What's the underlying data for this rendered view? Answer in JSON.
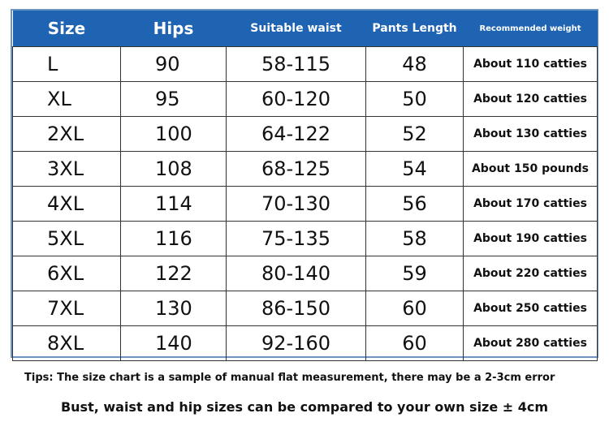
{
  "header": {
    "columns": [
      "Size",
      "Hips",
      "Suitable waist",
      "Pants Length",
      "Recommended weight"
    ]
  },
  "table": {
    "rows": [
      [
        "L",
        "90",
        "58-115",
        "48",
        "About 110 catties"
      ],
      [
        "XL",
        "95",
        "60-120",
        "50",
        "About 120 catties"
      ],
      [
        "2XL",
        "100",
        "64-122",
        "52",
        "About 130 catties"
      ],
      [
        "3XL",
        "108",
        "68-125",
        "54",
        "About 150 pounds"
      ],
      [
        "4XL",
        "114",
        "70-130",
        "56",
        "About 170 catties"
      ],
      [
        "5XL",
        "116",
        "75-135",
        "58",
        "About 190 catties"
      ],
      [
        "6XL",
        "122",
        "80-140",
        "59",
        "About 220 catties"
      ],
      [
        "7XL",
        "130",
        "86-150",
        "60",
        "About 250 catties"
      ],
      [
        "8XL",
        "140",
        "92-160",
        "60",
        "About 280 catties"
      ]
    ]
  },
  "notes": {
    "tips": "Tips: The size chart is a sample of manual flat measurement, there may be a 2-3cm error",
    "compare": "Bust, waist and hip sizes can be compared to your own size ± 4cm"
  }
}
